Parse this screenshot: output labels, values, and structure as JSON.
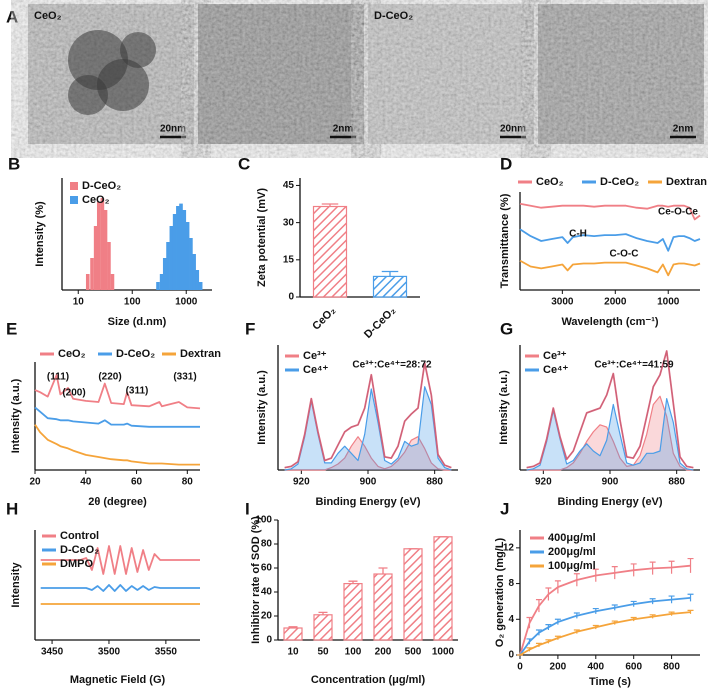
{
  "panel_a": {
    "panel_label": "A",
    "images": [
      {
        "label": "CeO₂",
        "scale_bar": "20nm"
      },
      {
        "scale_bar": "2nm"
      },
      {
        "label": "D-CeO₂",
        "scale_bar": "20nm"
      },
      {
        "scale_bar": "2nm"
      }
    ]
  },
  "chart_data": [
    {
      "type": "bar",
      "panel_label": "B",
      "xlabel": "Size (d.nm)",
      "ylabel": "Intensity (%)",
      "log": true,
      "xlim": [
        5,
        3000
      ],
      "xticks": [
        10,
        100,
        1000
      ],
      "ylim": [
        0,
        14
      ],
      "series": [
        {
          "name": "D-CeO₂",
          "color": "#f07f86",
          "x": [
            15,
            18,
            21,
            24,
            28,
            32,
            37,
            43
          ],
          "values": [
            2,
            4,
            8,
            11,
            11.5,
            10,
            6,
            2
          ]
        },
        {
          "name": "CeO₂",
          "color": "#4a9de8",
          "x": [
            300,
            350,
            400,
            460,
            530,
            610,
            700,
            800,
            920,
            1060,
            1220,
            1400,
            1600,
            1850
          ],
          "values": [
            1,
            2,
            4,
            6,
            8,
            9.5,
            10.5,
            10.8,
            10,
            8.5,
            6.5,
            4.5,
            2.5,
            1
          ]
        }
      ]
    },
    {
      "type": "bar",
      "panel_label": "C",
      "ylabel": "Zeta potential (mV)",
      "categories": [
        "CeO₂",
        "D-CeO₂"
      ],
      "values": [
        36.5,
        8.3
      ],
      "errors": [
        1,
        2
      ],
      "colors": [
        "#f07f86",
        "#4a9de8"
      ],
      "ylim": [
        0,
        48
      ],
      "yticks": [
        0,
        15,
        30,
        45
      ]
    },
    {
      "type": "line",
      "panel_label": "D",
      "xlabel": "Wavelength (cm⁻¹)",
      "ylabel": "Transmittance (%)",
      "xlim": [
        3800,
        400
      ],
      "xticks": [
        3000,
        2000,
        1000
      ],
      "ylim": [
        0,
        100
      ],
      "x": [
        3800,
        3600,
        3400,
        3200,
        3000,
        2900,
        2800,
        2600,
        2400,
        2200,
        2000,
        1800,
        1600,
        1400,
        1200,
        1100,
        1000,
        900,
        800,
        700,
        600,
        500,
        400
      ],
      "series": [
        {
          "name": "CeO₂",
          "color": "#f07f86",
          "values": [
            88,
            86,
            84,
            85,
            86,
            86,
            86,
            86,
            85,
            86,
            86,
            86,
            84,
            83,
            86,
            86,
            85,
            86,
            86,
            86,
            84,
            72,
            76
          ]
        },
        {
          "name": "D-CeO₂",
          "color": "#4a9de8",
          "values": [
            62,
            55,
            50,
            52,
            54,
            48,
            54,
            56,
            55,
            56,
            56,
            57,
            53,
            50,
            48,
            52,
            40,
            54,
            55,
            55,
            53,
            50,
            52
          ]
        },
        {
          "name": "Dextran",
          "color": "#f5a43a",
          "values": [
            30,
            24,
            22,
            24,
            26,
            20,
            26,
            27,
            27,
            28,
            28,
            28,
            25,
            22,
            18,
            26,
            15,
            26,
            27,
            27,
            26,
            25,
            27
          ]
        }
      ],
      "annotations": [
        "Ce-O-Ce",
        "C-H",
        "C-O-C"
      ]
    },
    {
      "type": "line",
      "panel_label": "E",
      "xlabel": "2θ (degree)",
      "ylabel": "Intensity (a.u.)",
      "xlim": [
        20,
        85
      ],
      "xticks": [
        20,
        40,
        60,
        80
      ],
      "ylim": [
        0,
        100
      ],
      "x": [
        20,
        22,
        25,
        28.5,
        30,
        33,
        35,
        40,
        45,
        47.5,
        50,
        55,
        56.3,
        58,
        65,
        69,
        70,
        76.7,
        80,
        85
      ],
      "series": [
        {
          "name": "CeO₂",
          "color": "#f07f86",
          "values": [
            74,
            72,
            68,
            88,
            70,
            76,
            66,
            64,
            63,
            80,
            62,
            61,
            72,
            60,
            59,
            63,
            59,
            63,
            58,
            57
          ]
        },
        {
          "name": "D-CeO₂",
          "color": "#4a9de8",
          "values": [
            58,
            54,
            48,
            47,
            46,
            46,
            45,
            44,
            43,
            46,
            42,
            42,
            43,
            41,
            40,
            40,
            40,
            40,
            40,
            40
          ]
        },
        {
          "name": "Dextran",
          "color": "#f5a43a",
          "values": [
            42,
            35,
            28,
            24,
            22,
            20,
            18,
            14,
            12,
            11,
            10,
            9,
            9,
            8,
            6,
            6,
            6,
            5,
            5,
            5
          ]
        }
      ],
      "annotations": [
        "(111)",
        "(200)",
        "(220)",
        "(311)",
        "(331)"
      ]
    },
    {
      "type": "area",
      "panel_label": "F",
      "xlabel": "Binding Energy (eV)",
      "ylabel": "Intensity (a.u.)",
      "xlim": [
        927,
        873
      ],
      "xticks": [
        920,
        900,
        880
      ],
      "ylim": [
        0,
        105
      ],
      "x": [
        925,
        923,
        921,
        919,
        917,
        915,
        913,
        911,
        909,
        907,
        905,
        903,
        901,
        899,
        897,
        895,
        893,
        891,
        889,
        887,
        885,
        883,
        881,
        879,
        877,
        875
      ],
      "series": [
        {
          "name": "Ce³⁺",
          "color": "#f07f86",
          "values": [
            0,
            0,
            0,
            0,
            0,
            0,
            0,
            2,
            5,
            10,
            20,
            28,
            20,
            10,
            3,
            1,
            3,
            8,
            15,
            25,
            28,
            18,
            6,
            1,
            0,
            0
          ]
        },
        {
          "name": "Ce⁴⁺",
          "color": "#4a9de8",
          "values": [
            0,
            1,
            5,
            28,
            58,
            30,
            6,
            6,
            14,
            20,
            14,
            8,
            30,
            68,
            40,
            8,
            5,
            10,
            24,
            20,
            22,
            70,
            55,
            10,
            2,
            0
          ]
        }
      ],
      "envelope": {
        "color": "#e0607a",
        "values": [
          2,
          3,
          7,
          30,
          60,
          32,
          8,
          10,
          21,
          32,
          36,
          38,
          52,
          80,
          45,
          11,
          10,
          20,
          41,
          47,
          52,
          90,
          63,
          13,
          4,
          2
        ]
      },
      "annotations": [
        "Ce³⁺:Ce⁴⁺=28:72"
      ]
    },
    {
      "type": "area",
      "panel_label": "G",
      "xlabel": "Binding Energy (eV)",
      "ylabel": "Intensity (a.u.)",
      "xlim": [
        927,
        873
      ],
      "xticks": [
        920,
        900,
        880
      ],
      "ylim": [
        0,
        105
      ],
      "x": [
        925,
        923,
        921,
        919,
        917,
        915,
        913,
        911,
        909,
        907,
        905,
        903,
        901,
        899,
        897,
        895,
        893,
        891,
        889,
        887,
        885,
        883,
        881,
        879,
        877,
        875
      ],
      "series": [
        {
          "name": "Ce³⁺",
          "color": "#f07f86",
          "values": [
            0,
            0,
            0,
            0,
            0,
            0,
            2,
            6,
            14,
            24,
            32,
            38,
            36,
            24,
            10,
            3,
            4,
            12,
            30,
            55,
            62,
            45,
            14,
            3,
            0,
            0
          ]
        },
        {
          "name": "Ce⁴⁺",
          "color": "#4a9de8",
          "values": [
            0,
            1,
            4,
            24,
            50,
            26,
            5,
            8,
            16,
            22,
            16,
            12,
            25,
            55,
            30,
            6,
            4,
            6,
            14,
            14,
            16,
            60,
            40,
            6,
            1,
            0
          ]
        }
      ],
      "envelope": {
        "color": "#e0607a",
        "values": [
          2,
          3,
          6,
          26,
          52,
          28,
          9,
          16,
          32,
          48,
          50,
          52,
          63,
          81,
          42,
          11,
          10,
          20,
          45,
          70,
          80,
          100,
          56,
          11,
          3,
          2
        ]
      },
      "annotations": [
        "Ce³⁺:Ce⁴⁺=41:59"
      ]
    },
    {
      "type": "line",
      "panel_label": "H",
      "xlabel": "Magnetic Field (G)",
      "ylabel": "Intensity",
      "xlim": [
        3435,
        3580
      ],
      "xticks": [
        3450,
        3500,
        3550
      ],
      "ylim": [
        0,
        110
      ],
      "x": [
        3440,
        3445,
        3450,
        3455,
        3460,
        3465,
        3470,
        3475,
        3480,
        3485,
        3490,
        3495,
        3500,
        3505,
        3510,
        3515,
        3520,
        3525,
        3530,
        3535,
        3540,
        3545,
        3550,
        3555,
        3560,
        3565,
        3570,
        3575,
        3580
      ],
      "series": [
        {
          "name": "Control",
          "color": "#f07f86",
          "values": [
            80,
            80,
            80,
            80,
            80,
            80,
            80,
            80,
            82,
            70,
            92,
            66,
            94,
            66,
            94,
            66,
            92,
            68,
            90,
            70,
            86,
            80,
            80,
            80,
            80,
            80,
            80,
            80,
            80
          ]
        },
        {
          "name": "D-CeO₂",
          "color": "#4a9de8",
          "values": [
            52,
            52,
            52,
            52,
            52,
            52,
            52,
            52,
            52,
            50,
            54,
            49,
            55,
            49,
            55,
            49,
            54,
            50,
            54,
            50,
            53,
            52,
            52,
            52,
            52,
            52,
            52,
            52,
            52
          ]
        },
        {
          "name": "DMPO",
          "color": "#f5a43a",
          "values": [
            36,
            36,
            36,
            36,
            36,
            36,
            36,
            36,
            36,
            36,
            36,
            36,
            36,
            36,
            36,
            36,
            36,
            36,
            36,
            36,
            36,
            36,
            36,
            36,
            36,
            36,
            36,
            36,
            36
          ]
        }
      ]
    },
    {
      "type": "bar",
      "panel_label": "I",
      "xlabel": "Concentration (μg/ml)",
      "ylabel": "Inhibitor rate of SOD (%)",
      "categories": [
        "10",
        "50",
        "100",
        "200",
        "500",
        "1000"
      ],
      "values": [
        10,
        21,
        47,
        55,
        76,
        86
      ],
      "errors": [
        1,
        2,
        2,
        5,
        0,
        0
      ],
      "colors": [
        "#f07f86",
        "#f07f86",
        "#f07f86",
        "#f07f86",
        "#f07f86",
        "#f07f86"
      ],
      "ylim": [
        0,
        100
      ],
      "yticks": [
        0,
        20,
        40,
        60,
        80,
        100
      ]
    },
    {
      "type": "line",
      "panel_label": "J",
      "xlabel": "Time (s)",
      "ylabel": "O₂ generation (mg/L)",
      "xlim": [
        0,
        950
      ],
      "xticks": [
        0,
        200,
        400,
        600,
        800
      ],
      "ylim": [
        0,
        14
      ],
      "yticks": [
        0,
        4,
        8,
        12
      ],
      "x": [
        0,
        50,
        100,
        150,
        200,
        300,
        400,
        500,
        600,
        700,
        800,
        900
      ],
      "series": [
        {
          "name": "400μg/ml",
          "color": "#f07f86",
          "values": [
            0,
            3.6,
            5.5,
            6.8,
            7.6,
            8.4,
            8.9,
            9.2,
            9.5,
            9.7,
            9.8,
            10
          ],
          "errors": [
            0,
            0.6,
            0.7,
            0.7,
            0.7,
            0.7,
            0.7,
            0.7,
            0.7,
            0.7,
            0.7,
            0.8
          ]
        },
        {
          "name": "200μg/ml",
          "color": "#4a9de8",
          "values": [
            0,
            1.5,
            2.5,
            3.1,
            3.7,
            4.4,
            4.9,
            5.3,
            5.7,
            6,
            6.2,
            6.4
          ],
          "errors": [
            0,
            0.3,
            0.3,
            0.3,
            0.3,
            0.3,
            0.3,
            0.3,
            0.3,
            0.3,
            0.4,
            0.4
          ]
        },
        {
          "name": "100μg/ml",
          "color": "#f5a43a",
          "values": [
            0,
            0.6,
            1.1,
            1.5,
            1.9,
            2.6,
            3.1,
            3.6,
            4,
            4.3,
            4.6,
            4.8
          ],
          "errors": [
            0,
            0.2,
            0.2,
            0.2,
            0.2,
            0.2,
            0.2,
            0.2,
            0.2,
            0.2,
            0.2,
            0.2
          ]
        }
      ]
    }
  ]
}
